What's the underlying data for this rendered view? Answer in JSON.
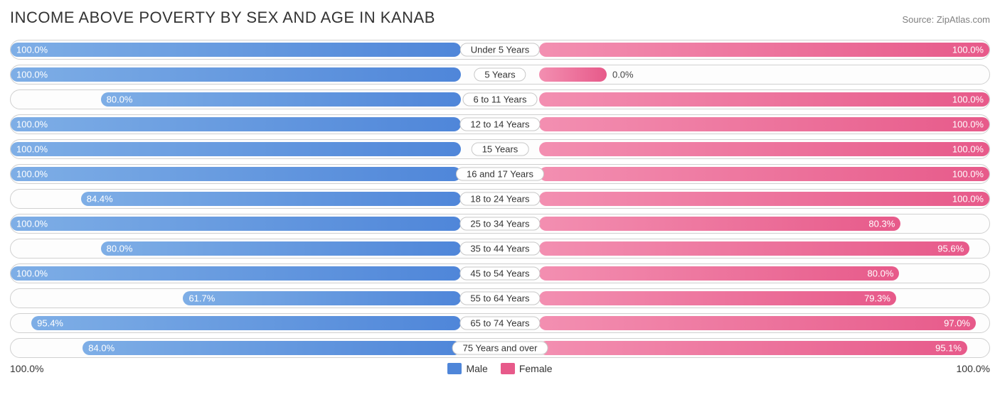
{
  "title": "INCOME ABOVE POVERTY BY SEX AND AGE IN KANAB",
  "source": "Source: ZipAtlas.com",
  "colors": {
    "male_start": "#7eaee6",
    "male_end": "#4f86d9",
    "female_start": "#f38fb1",
    "female_end": "#e75a8a",
    "row_border": "#d0d0d0",
    "row_bg": "#fdfdfd",
    "text": "#333333",
    "text_light": "#808080",
    "white": "#ffffff"
  },
  "axis": {
    "left": "100.0%",
    "right": "100.0%"
  },
  "legend": {
    "male": "Male",
    "female": "Female"
  },
  "label_offset_pct": 8,
  "rows": [
    {
      "category": "Under 5 Years",
      "male": 100.0,
      "female": 100.0,
      "male_label": "100.0%",
      "female_label": "100.0%"
    },
    {
      "category": "5 Years",
      "male": 100.0,
      "female": 0.0,
      "male_label": "100.0%",
      "female_label": "0.0%",
      "female_bar_override": 15,
      "female_label_outside": true
    },
    {
      "category": "6 to 11 Years",
      "male": 80.0,
      "female": 100.0,
      "male_label": "80.0%",
      "female_label": "100.0%"
    },
    {
      "category": "12 to 14 Years",
      "male": 100.0,
      "female": 100.0,
      "male_label": "100.0%",
      "female_label": "100.0%"
    },
    {
      "category": "15 Years",
      "male": 100.0,
      "female": 100.0,
      "male_label": "100.0%",
      "female_label": "100.0%"
    },
    {
      "category": "16 and 17 Years",
      "male": 100.0,
      "female": 100.0,
      "male_label": "100.0%",
      "female_label": "100.0%"
    },
    {
      "category": "18 to 24 Years",
      "male": 84.4,
      "female": 100.0,
      "male_label": "84.4%",
      "female_label": "100.0%"
    },
    {
      "category": "25 to 34 Years",
      "male": 100.0,
      "female": 80.3,
      "male_label": "100.0%",
      "female_label": "80.3%"
    },
    {
      "category": "35 to 44 Years",
      "male": 80.0,
      "female": 95.6,
      "male_label": "80.0%",
      "female_label": "95.6%"
    },
    {
      "category": "45 to 54 Years",
      "male": 100.0,
      "female": 80.0,
      "male_label": "100.0%",
      "female_label": "80.0%"
    },
    {
      "category": "55 to 64 Years",
      "male": 61.7,
      "female": 79.3,
      "male_label": "61.7%",
      "female_label": "79.3%"
    },
    {
      "category": "65 to 74 Years",
      "male": 95.4,
      "female": 97.0,
      "male_label": "95.4%",
      "female_label": "97.0%"
    },
    {
      "category": "75 Years and over",
      "male": 84.0,
      "female": 95.1,
      "male_label": "84.0%",
      "female_label": "95.1%"
    }
  ]
}
